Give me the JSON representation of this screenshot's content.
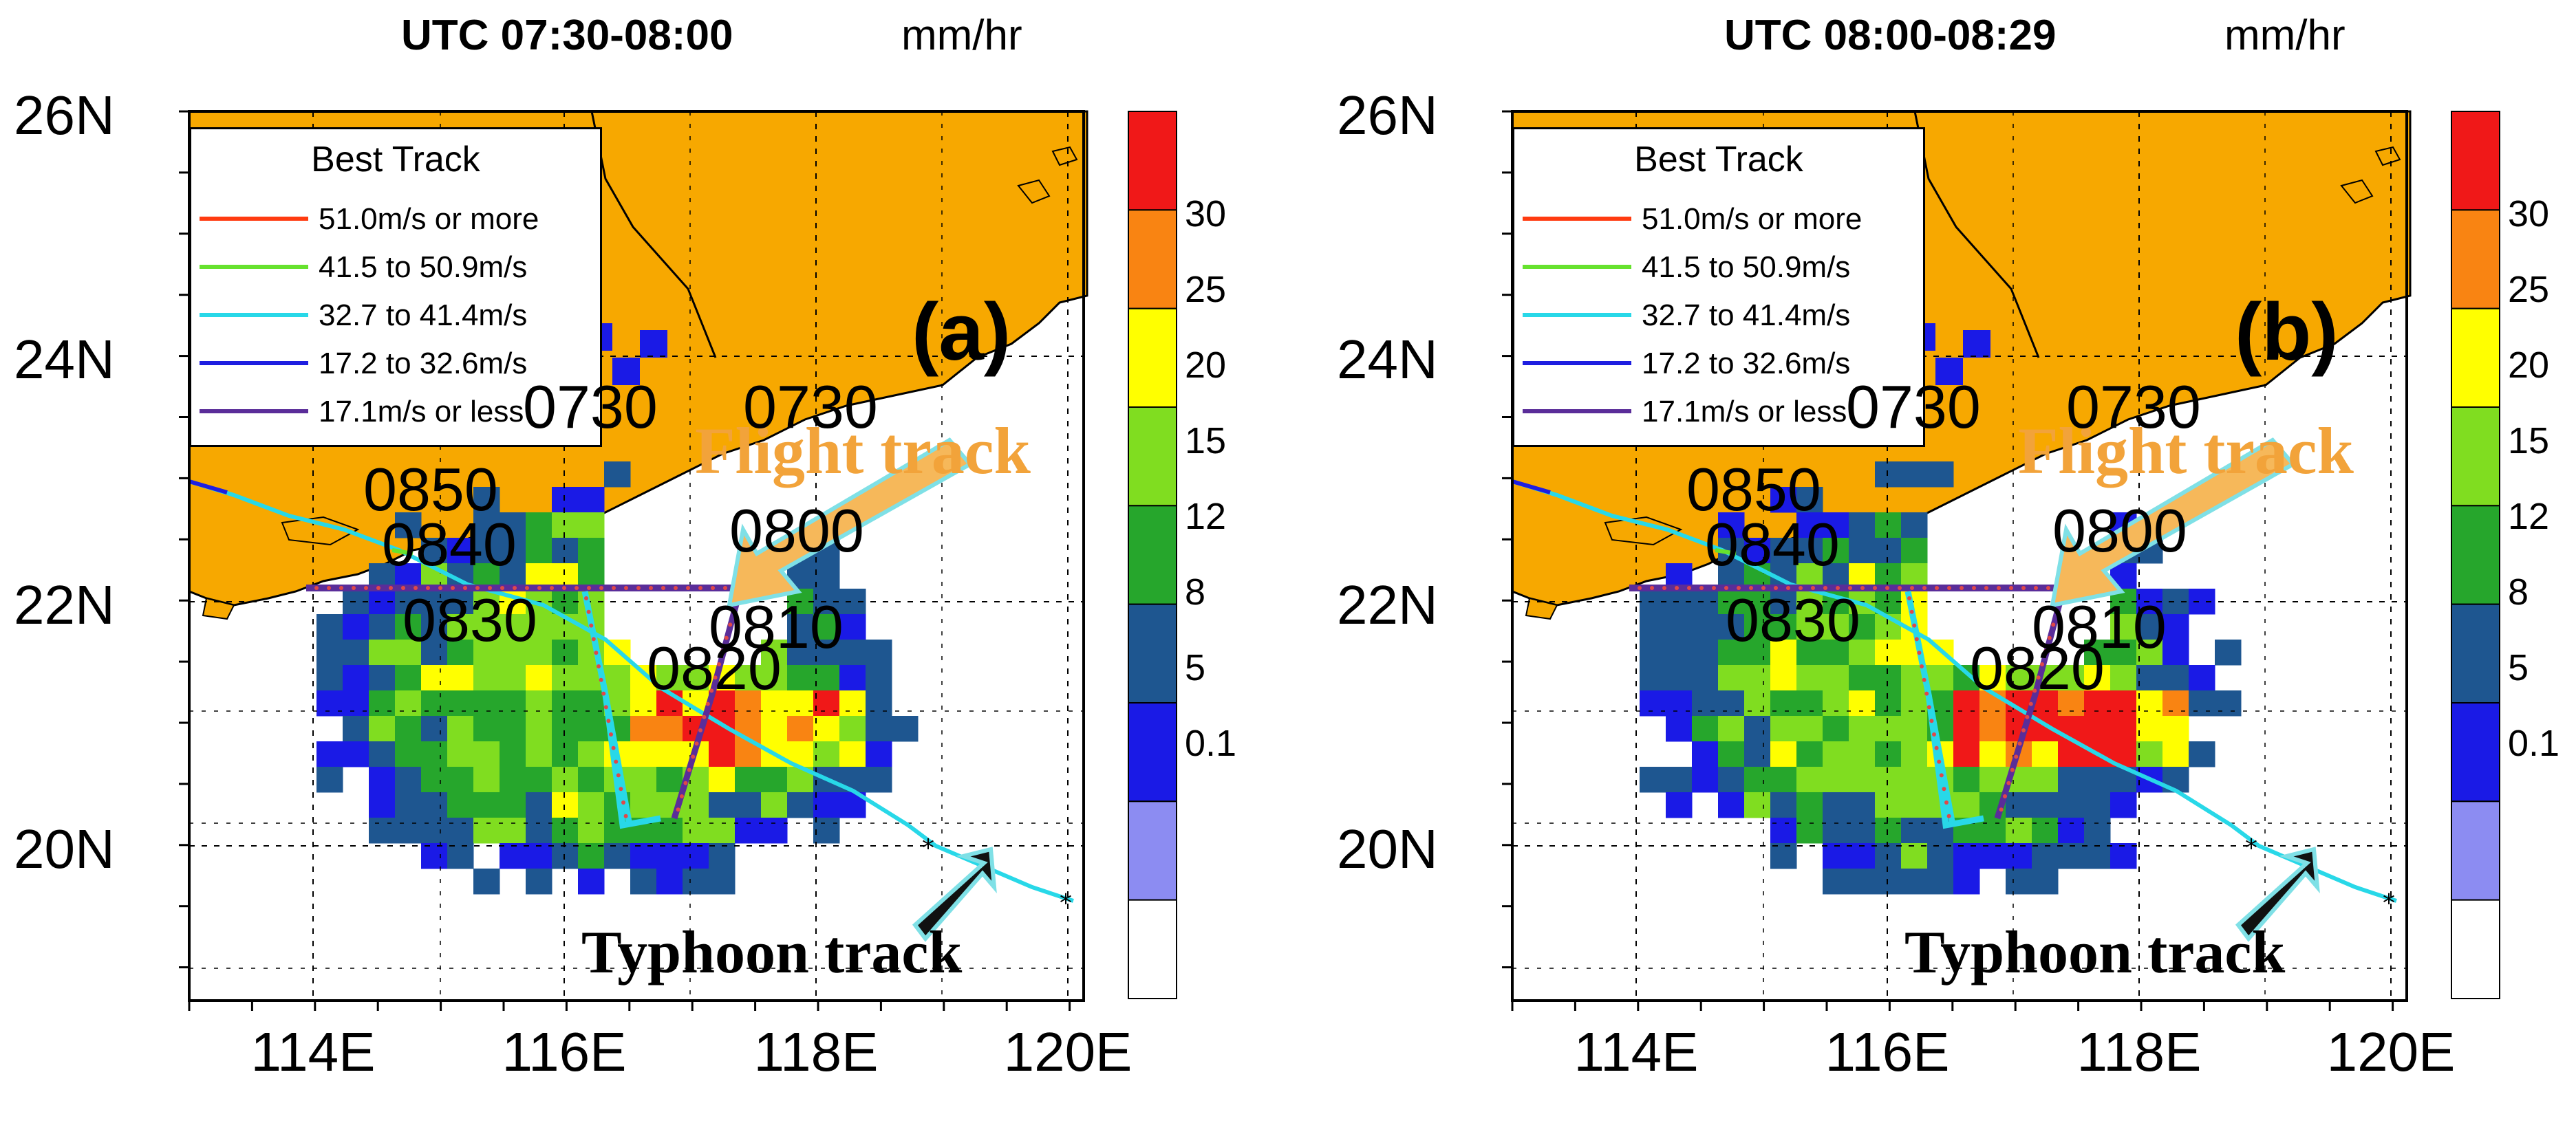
{
  "colors": {
    "land": "#f7a800",
    "coast": "#000000",
    "flight_track": "#5a2d99",
    "flight_points": "#e04848",
    "arrow_flight": "#f6b85a",
    "arrow_typhoon": "#111111",
    "arrow_outline": "#7fe0e6"
  },
  "panels": [
    {
      "id": "a",
      "time_title": "UTC 07:30-08:00",
      "unit_title": "mm/hr",
      "panel_label": "(a)",
      "annotations": {
        "flight": "Flight track",
        "typhoon": "Typhoon  track"
      },
      "track_time_labels": [
        "0730",
        "0730",
        "0800",
        "0810",
        "0820",
        "0830",
        "0840",
        "0850"
      ]
    },
    {
      "id": "b",
      "time_title": "UTC 08:00-08:29",
      "unit_title": "mm/hr",
      "panel_label": "(b)",
      "annotations": {
        "flight": "Flight track",
        "typhoon": "Typhoon  track"
      },
      "track_time_labels": [
        "0730",
        "0730",
        "0800",
        "0810",
        "0820",
        "0830",
        "0840",
        "0850"
      ]
    }
  ],
  "axes": {
    "lat_labels": [
      "26N",
      "24N",
      "22N",
      "20N"
    ],
    "lon_labels": [
      "114E",
      "116E",
      "118E",
      "120E"
    ],
    "lon_range": [
      113,
      120
    ],
    "lat_range": [
      19,
      26
    ]
  },
  "legend": {
    "title": "Best Track",
    "items": [
      {
        "label": "51.0m/s or more",
        "color": "#ff3b10"
      },
      {
        "label": "41.5 to 50.9m/s",
        "color": "#66e22e"
      },
      {
        "label": "32.7 to 41.4m/s",
        "color": "#28d8e8"
      },
      {
        "label": "17.2 to 32.6m/s",
        "color": "#1e1ee0"
      },
      {
        "label": "17.1m/s or less",
        "color": "#5a2d99"
      }
    ]
  },
  "colorbar": {
    "labels": [
      "30",
      "25",
      "20",
      "15",
      "12",
      "8",
      "5",
      "0.1"
    ],
    "colors": [
      "#ffffff",
      "#8c8cf2",
      "#1a1ae6",
      "#1e5690",
      "#26a62c",
      "#80dd20",
      "#ffff00",
      "#f98412",
      "#f01818"
    ]
  }
}
